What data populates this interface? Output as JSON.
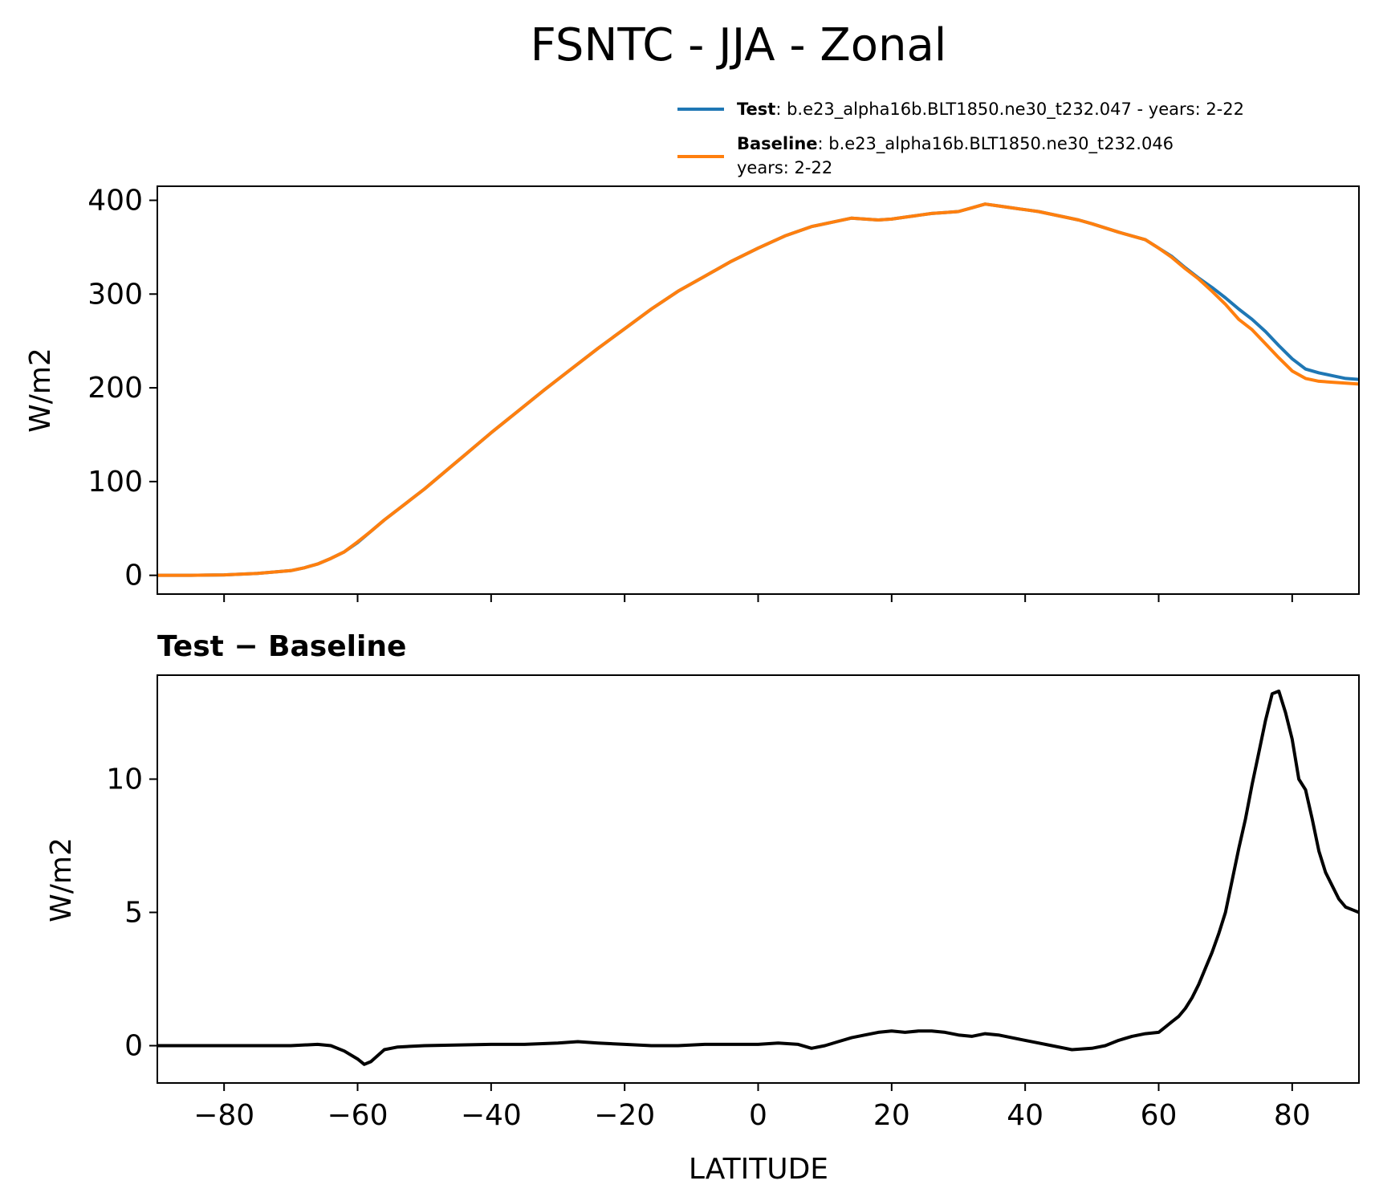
{
  "figure": {
    "title": "FSNTC - JJA - Zonal",
    "legend": {
      "test": {
        "name": "Test",
        "text": ": b.e23_alpha16b.BLT1850.ne30_t232.047 - years: 2-22",
        "color": "#1f77b4"
      },
      "baseline": {
        "name": "Baseline",
        "text": ": b.e23_alpha16b.BLT1850.ne30_t232.046",
        "text2": "years: 2-22",
        "color": "#ff7f0e"
      }
    },
    "diff_title": "Test − Baseline",
    "xlabel": "LATITUDE",
    "ylabel_top": "W/m2",
    "ylabel_bottom": "W/m2"
  },
  "chart_data": [
    {
      "type": "line",
      "xlim": [
        -90,
        90
      ],
      "ylim": [
        -20,
        415
      ],
      "xticks": [
        -80,
        -60,
        -40,
        -20,
        0,
        20,
        40,
        60,
        80
      ],
      "yticks": [
        0,
        100,
        200,
        300,
        400
      ],
      "ytick_labels": [
        "0",
        "100",
        "200",
        "300",
        "400"
      ],
      "series": [
        {
          "name": "Test",
          "color": "#1f77b4",
          "x": [
            -90,
            -85,
            -80,
            -75,
            -70,
            -68,
            -66,
            -64,
            -62,
            -60,
            -58,
            -56,
            -54,
            -52,
            -50,
            -48,
            -46,
            -44,
            -42,
            -40,
            -36,
            -32,
            -28,
            -24,
            -20,
            -16,
            -12,
            -8,
            -4,
            0,
            4,
            8,
            12,
            14,
            16,
            18,
            20,
            22,
            24,
            26,
            28,
            30,
            32,
            34,
            36,
            38,
            40,
            42,
            44,
            46,
            48,
            50,
            54,
            58,
            60,
            62,
            64,
            66,
            68,
            70,
            72,
            74,
            76,
            78,
            80,
            82,
            84,
            86,
            88,
            90
          ],
          "y": [
            0,
            0,
            0.5,
            2,
            5,
            8,
            12,
            18,
            25,
            35,
            47,
            59,
            70,
            81,
            92,
            104,
            116,
            128,
            140,
            152,
            175,
            198,
            220,
            242,
            263,
            284,
            303,
            319,
            335,
            349,
            362,
            372,
            378,
            381,
            380,
            379,
            380,
            382,
            384,
            386,
            387,
            388,
            392,
            396,
            394,
            392,
            390,
            388,
            385,
            382,
            379,
            375,
            366,
            358,
            349,
            340,
            328,
            317,
            307,
            296,
            284,
            273,
            260,
            245,
            231,
            220,
            216,
            213,
            210,
            209
          ]
        },
        {
          "name": "Baseline",
          "color": "#ff7f0e",
          "x": [
            -90,
            -85,
            -80,
            -75,
            -70,
            -68,
            -66,
            -64,
            -62,
            -60,
            -58,
            -56,
            -54,
            -52,
            -50,
            -48,
            -46,
            -44,
            -42,
            -40,
            -36,
            -32,
            -28,
            -24,
            -20,
            -16,
            -12,
            -8,
            -4,
            0,
            4,
            8,
            12,
            14,
            16,
            18,
            20,
            22,
            24,
            26,
            28,
            30,
            32,
            34,
            36,
            38,
            40,
            42,
            44,
            46,
            48,
            50,
            54,
            58,
            60,
            62,
            64,
            66,
            68,
            70,
            72,
            74,
            76,
            78,
            80,
            82,
            84,
            86,
            88,
            90
          ],
          "y": [
            0,
            0,
            0.5,
            2,
            5,
            8,
            12,
            18,
            25,
            35.7,
            47,
            59,
            70,
            81,
            92,
            104,
            116,
            128,
            140,
            152,
            175,
            198,
            220,
            242,
            263,
            284,
            303,
            319,
            335,
            349,
            362,
            372,
            378,
            381,
            380,
            379,
            380,
            382,
            384,
            386,
            387,
            388,
            392,
            396,
            394,
            392,
            390,
            388,
            385,
            382,
            379,
            375,
            366,
            358,
            349,
            339,
            327,
            316,
            303,
            289,
            273,
            262,
            247,
            232,
            218,
            210,
            207,
            206,
            205,
            204
          ]
        }
      ]
    },
    {
      "type": "line",
      "title": "Test − Baseline",
      "xlim": [
        -90,
        90
      ],
      "ylim": [
        -1.4,
        13.9
      ],
      "xlabel": "LATITUDE",
      "xticks": [
        -80,
        -60,
        -40,
        -20,
        0,
        20,
        40,
        60,
        80
      ],
      "xtick_labels": [
        "−80",
        "−60",
        "−40",
        "−20",
        "0",
        "20",
        "40",
        "60",
        "80"
      ],
      "yticks": [
        0,
        5,
        10
      ],
      "ytick_labels": [
        "0",
        "5",
        "10"
      ],
      "series": [
        {
          "name": "Test − Baseline",
          "color": "#000000",
          "x": [
            -90,
            -80,
            -70,
            -66,
            -64,
            -62,
            -60,
            -59,
            -58,
            -56,
            -54,
            -50,
            -40,
            -35,
            -30,
            -27,
            -24,
            -20,
            -16,
            -12,
            -8,
            -4,
            0,
            3,
            6,
            8,
            10,
            12,
            14,
            16,
            18,
            20,
            22,
            24,
            26,
            28,
            30,
            32,
            34,
            36,
            38,
            40,
            42,
            44,
            46,
            47,
            50,
            52,
            54,
            56,
            58,
            60,
            61,
            62,
            63,
            64,
            65,
            66,
            67,
            68,
            69,
            70,
            71,
            72,
            73,
            74,
            75,
            76,
            77,
            78,
            79,
            80,
            81,
            82,
            83,
            84,
            85,
            86,
            87,
            88,
            89,
            90
          ],
          "y": [
            0,
            0,
            0,
            0.05,
            0,
            -0.2,
            -0.5,
            -0.7,
            -0.6,
            -0.15,
            -0.05,
            0,
            0.05,
            0.05,
            0.1,
            0.15,
            0.1,
            0.05,
            0,
            0,
            0.05,
            0.05,
            0.05,
            0.1,
            0.05,
            -0.1,
            0,
            0.15,
            0.3,
            0.4,
            0.5,
            0.55,
            0.5,
            0.55,
            0.55,
            0.5,
            0.4,
            0.35,
            0.45,
            0.4,
            0.3,
            0.2,
            0.1,
            0,
            -0.1,
            -0.15,
            -0.1,
            0,
            0.2,
            0.35,
            0.45,
            0.5,
            0.7,
            0.9,
            1.1,
            1.4,
            1.8,
            2.3,
            2.9,
            3.5,
            4.2,
            5,
            6.2,
            7.4,
            8.5,
            9.8,
            11,
            12.2,
            13.2,
            13.3,
            12.5,
            11.5,
            10,
            9.6,
            8.5,
            7.3,
            6.5,
            6,
            5.5,
            5.2,
            5.1,
            5
          ]
        }
      ]
    }
  ]
}
